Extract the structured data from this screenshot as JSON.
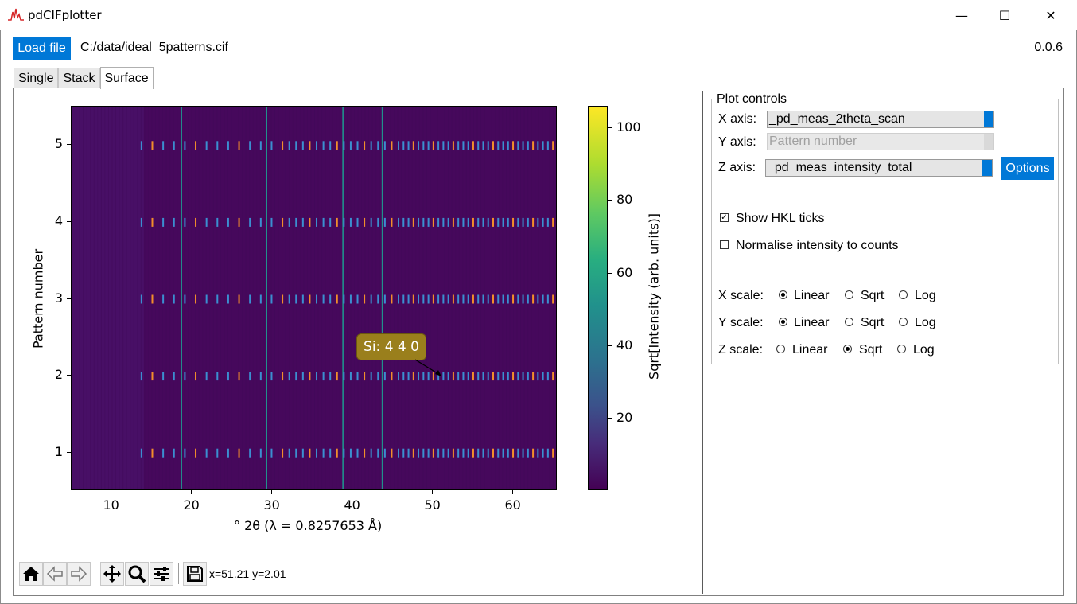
{
  "window": {
    "title": "pdCIFplotter",
    "minimize": "—",
    "maximize": "☐",
    "close": "✕"
  },
  "header": {
    "load_button": "Load file",
    "file_path": "C:/data/ideal_5patterns.cif",
    "version": "0.0.6"
  },
  "tabs": [
    {
      "label": "Single",
      "active": false
    },
    {
      "label": "Stack",
      "active": false
    },
    {
      "label": "Surface",
      "active": true
    }
  ],
  "plot": {
    "x_ticks": [
      "10",
      "20",
      "30",
      "40",
      "50",
      "60"
    ],
    "y_ticks": [
      "1",
      "2",
      "3",
      "4",
      "5"
    ],
    "xlabel": "° 2θ (λ = 0.8257653 Å)",
    "ylabel": "Pattern number",
    "colorbar_ticks": [
      "20",
      "40",
      "60",
      "80",
      "100"
    ],
    "colorbar_label": "Sqrt[Intensity (arb. units)]",
    "annotation": "Si: 4 4 0",
    "coordinates": "x=51.21 y=2.01"
  },
  "chart_data": {
    "type": "heatmap",
    "xlabel": "° 2θ (λ = 0.8257653 Å)",
    "ylabel": "Pattern number",
    "xlim": [
      5,
      65.5
    ],
    "ylim": [
      0.5,
      5.5
    ],
    "clim": [
      0,
      106
    ],
    "colormap": "viridis",
    "colorbar_label": "Sqrt[Intensity (arb. units)]",
    "peak_positions_2theta": [
      18.6,
      29.2,
      38.7,
      43.6
    ],
    "hkl_tick_patterns": [
      1,
      2,
      3,
      4,
      5
    ],
    "annotation": {
      "text": "Si: 4 4 0",
      "x": 51.2,
      "y": 2.0
    }
  },
  "toolbar": {
    "icons": [
      "home-icon",
      "back-icon",
      "forward-icon",
      "pan-icon",
      "zoom-icon",
      "configure-subplots-icon",
      "save-icon"
    ]
  },
  "controls": {
    "group_title": "Plot controls",
    "x_axis_label": "X axis:",
    "x_axis_value": "_pd_meas_2theta_scan",
    "y_axis_label": "Y axis:",
    "y_axis_value": "Pattern number",
    "z_axis_label": "Z axis:",
    "z_axis_value": "_pd_meas_intensity_total",
    "options_button": "Options",
    "show_hkl_label": "Show HKL ticks",
    "show_hkl_checked": true,
    "normalise_label": "Normalise intensity to counts",
    "normalise_checked": false,
    "x_scale_label": "X scale:",
    "y_scale_label": "Y scale:",
    "z_scale_label": "Z scale:",
    "scale_options": [
      "Linear",
      "Sqrt",
      "Log"
    ],
    "x_scale_selected": "Linear",
    "y_scale_selected": "Linear",
    "z_scale_selected": "Sqrt"
  },
  "colors": {
    "accent": "#0078d7",
    "heatmap_background": "#46085c",
    "peak_line": "#21918c",
    "tick_blue": "#3b8fd0",
    "tick_orange": "#f28e2b",
    "annotation_bg": "#9a7f1c"
  }
}
